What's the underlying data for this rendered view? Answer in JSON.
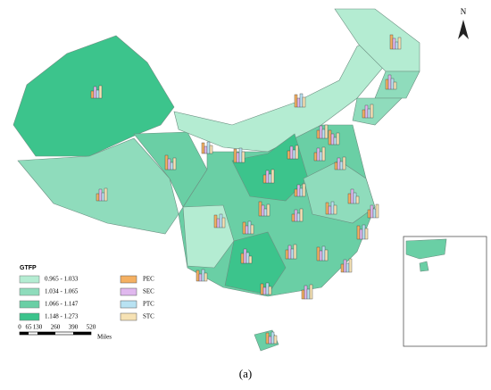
{
  "north_arrow": "N",
  "legend": {
    "title": "GTFP",
    "classes": [
      {
        "label": "0.965 - 1.033",
        "color": "#b4ecd2"
      },
      {
        "label": "1.034 - 1.065",
        "color": "#8fdcbc"
      },
      {
        "label": "1.066 - 1.147",
        "color": "#6acfa5"
      },
      {
        "label": "1.148 - 1.273",
        "color": "#3cc48c"
      }
    ],
    "indicators": [
      {
        "label": "PEC",
        "color": "#f4b062"
      },
      {
        "label": "SEC",
        "color": "#e0b8ee"
      },
      {
        "label": "PTC",
        "color": "#b8e2f2"
      },
      {
        "label": "STC",
        "color": "#f6e2b4"
      }
    ]
  },
  "scale_bar": {
    "ticks": [
      "0",
      "65",
      "130",
      "260",
      "390",
      "520"
    ],
    "unit": "Miles"
  },
  "caption": "(a)"
}
